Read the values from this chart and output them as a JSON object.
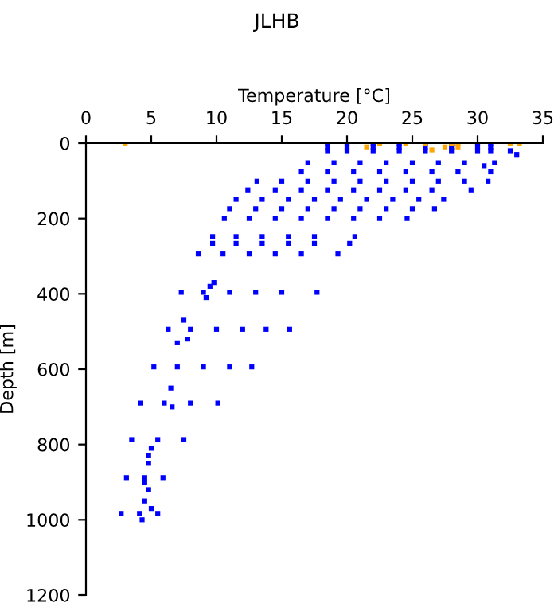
{
  "chart_data": {
    "type": "scatter",
    "title": "JLHB",
    "xlabel": "Temperature [°C]",
    "ylabel": "Depth [m]",
    "xlim": [
      0,
      35
    ],
    "xticks": [
      0,
      5,
      10,
      15,
      20,
      25,
      30,
      35
    ],
    "ylim": [
      1200,
      0
    ],
    "yticks": [
      0,
      200,
      400,
      600,
      800,
      1000,
      1200
    ],
    "grid": false,
    "legend": false,
    "marker": "square",
    "series": [
      {
        "color": "#0000ff",
        "x": [
          18.5,
          20,
          22,
          24,
          26,
          28,
          30,
          31,
          18.5,
          20,
          22,
          24,
          26,
          28,
          30,
          31,
          18.5,
          20,
          22,
          24,
          26,
          28,
          30,
          31,
          17,
          19,
          21,
          23,
          25,
          27,
          29,
          31.3,
          16.5,
          18.5,
          20.5,
          22.5,
          24.5,
          26.5,
          28.5,
          31,
          13.1,
          15,
          17,
          19,
          21,
          23,
          25,
          27,
          29,
          30.8,
          12.4,
          14.5,
          16.5,
          18.5,
          20.5,
          22.5,
          24.5,
          26.5,
          29.5,
          11.5,
          13.5,
          15.5,
          17.5,
          19.5,
          21.5,
          23.5,
          25.5,
          27.4,
          11,
          13,
          15,
          17,
          19,
          21,
          23,
          25,
          26.7,
          10.6,
          12.5,
          14.5,
          16.5,
          18.5,
          20.5,
          22.5,
          24.6,
          9.7,
          11.5,
          13.5,
          15.5,
          17.5,
          20.6,
          9.7,
          11.5,
          13.5,
          15.5,
          17.5,
          20.2,
          8.6,
          10.5,
          12.5,
          14.5,
          16.5,
          19.3,
          7.3,
          9,
          11,
          13,
          15,
          17.7,
          6.3,
          8,
          10,
          12,
          13.8,
          15.6,
          5.2,
          7,
          9,
          11,
          12.7,
          4.2,
          6,
          8,
          10.1,
          3.5,
          5.5,
          7.5,
          3.1,
          4.5,
          5.9,
          2.7,
          4.1,
          5.5,
          9.5,
          9.8,
          9.2,
          7.5,
          7.8,
          7,
          6.5,
          6.6,
          5,
          4.8,
          4.8,
          4.5,
          4.8,
          4.5,
          4.3,
          5,
          32.5,
          33,
          30.5
        ],
        "values": [
          0,
          0,
          0,
          0,
          0,
          0,
          0,
          0,
          10,
          10,
          10,
          10,
          10,
          10,
          10,
          10,
          20,
          20,
          20,
          20,
          20,
          20,
          20,
          20,
          52,
          52,
          52,
          52,
          52,
          52,
          52,
          52,
          76,
          76,
          76,
          76,
          76,
          76,
          76,
          76,
          101,
          101,
          101,
          101,
          101,
          101,
          101,
          101,
          101,
          101,
          124,
          124,
          124,
          124,
          124,
          124,
          124,
          124,
          124,
          149,
          149,
          149,
          149,
          149,
          149,
          149,
          149,
          149,
          174,
          174,
          174,
          174,
          174,
          174,
          174,
          174,
          174,
          200,
          200,
          200,
          200,
          200,
          200,
          200,
          200,
          248,
          248,
          248,
          248,
          248,
          248,
          266,
          266,
          266,
          266,
          266,
          266,
          294,
          294,
          294,
          294,
          294,
          294,
          396,
          396,
          396,
          396,
          396,
          396,
          494,
          494,
          494,
          494,
          494,
          494,
          594,
          594,
          594,
          594,
          594,
          690,
          690,
          690,
          690,
          787,
          787,
          787,
          888,
          888,
          888,
          983,
          983,
          983,
          380,
          370,
          410,
          470,
          520,
          530,
          650,
          700,
          810,
          830,
          850,
          900,
          920,
          950,
          1000,
          970,
          20,
          30,
          60
        ]
      },
      {
        "color": "#ffa500",
        "x": [
          3,
          22.5,
          24.5,
          26,
          28,
          28.5,
          32.5,
          33.2,
          21.5,
          27.5,
          28.5,
          26.5
        ],
        "values": [
          0,
          0,
          0,
          0,
          0,
          0,
          0,
          0,
          10,
          10,
          10,
          18
        ]
      }
    ]
  }
}
